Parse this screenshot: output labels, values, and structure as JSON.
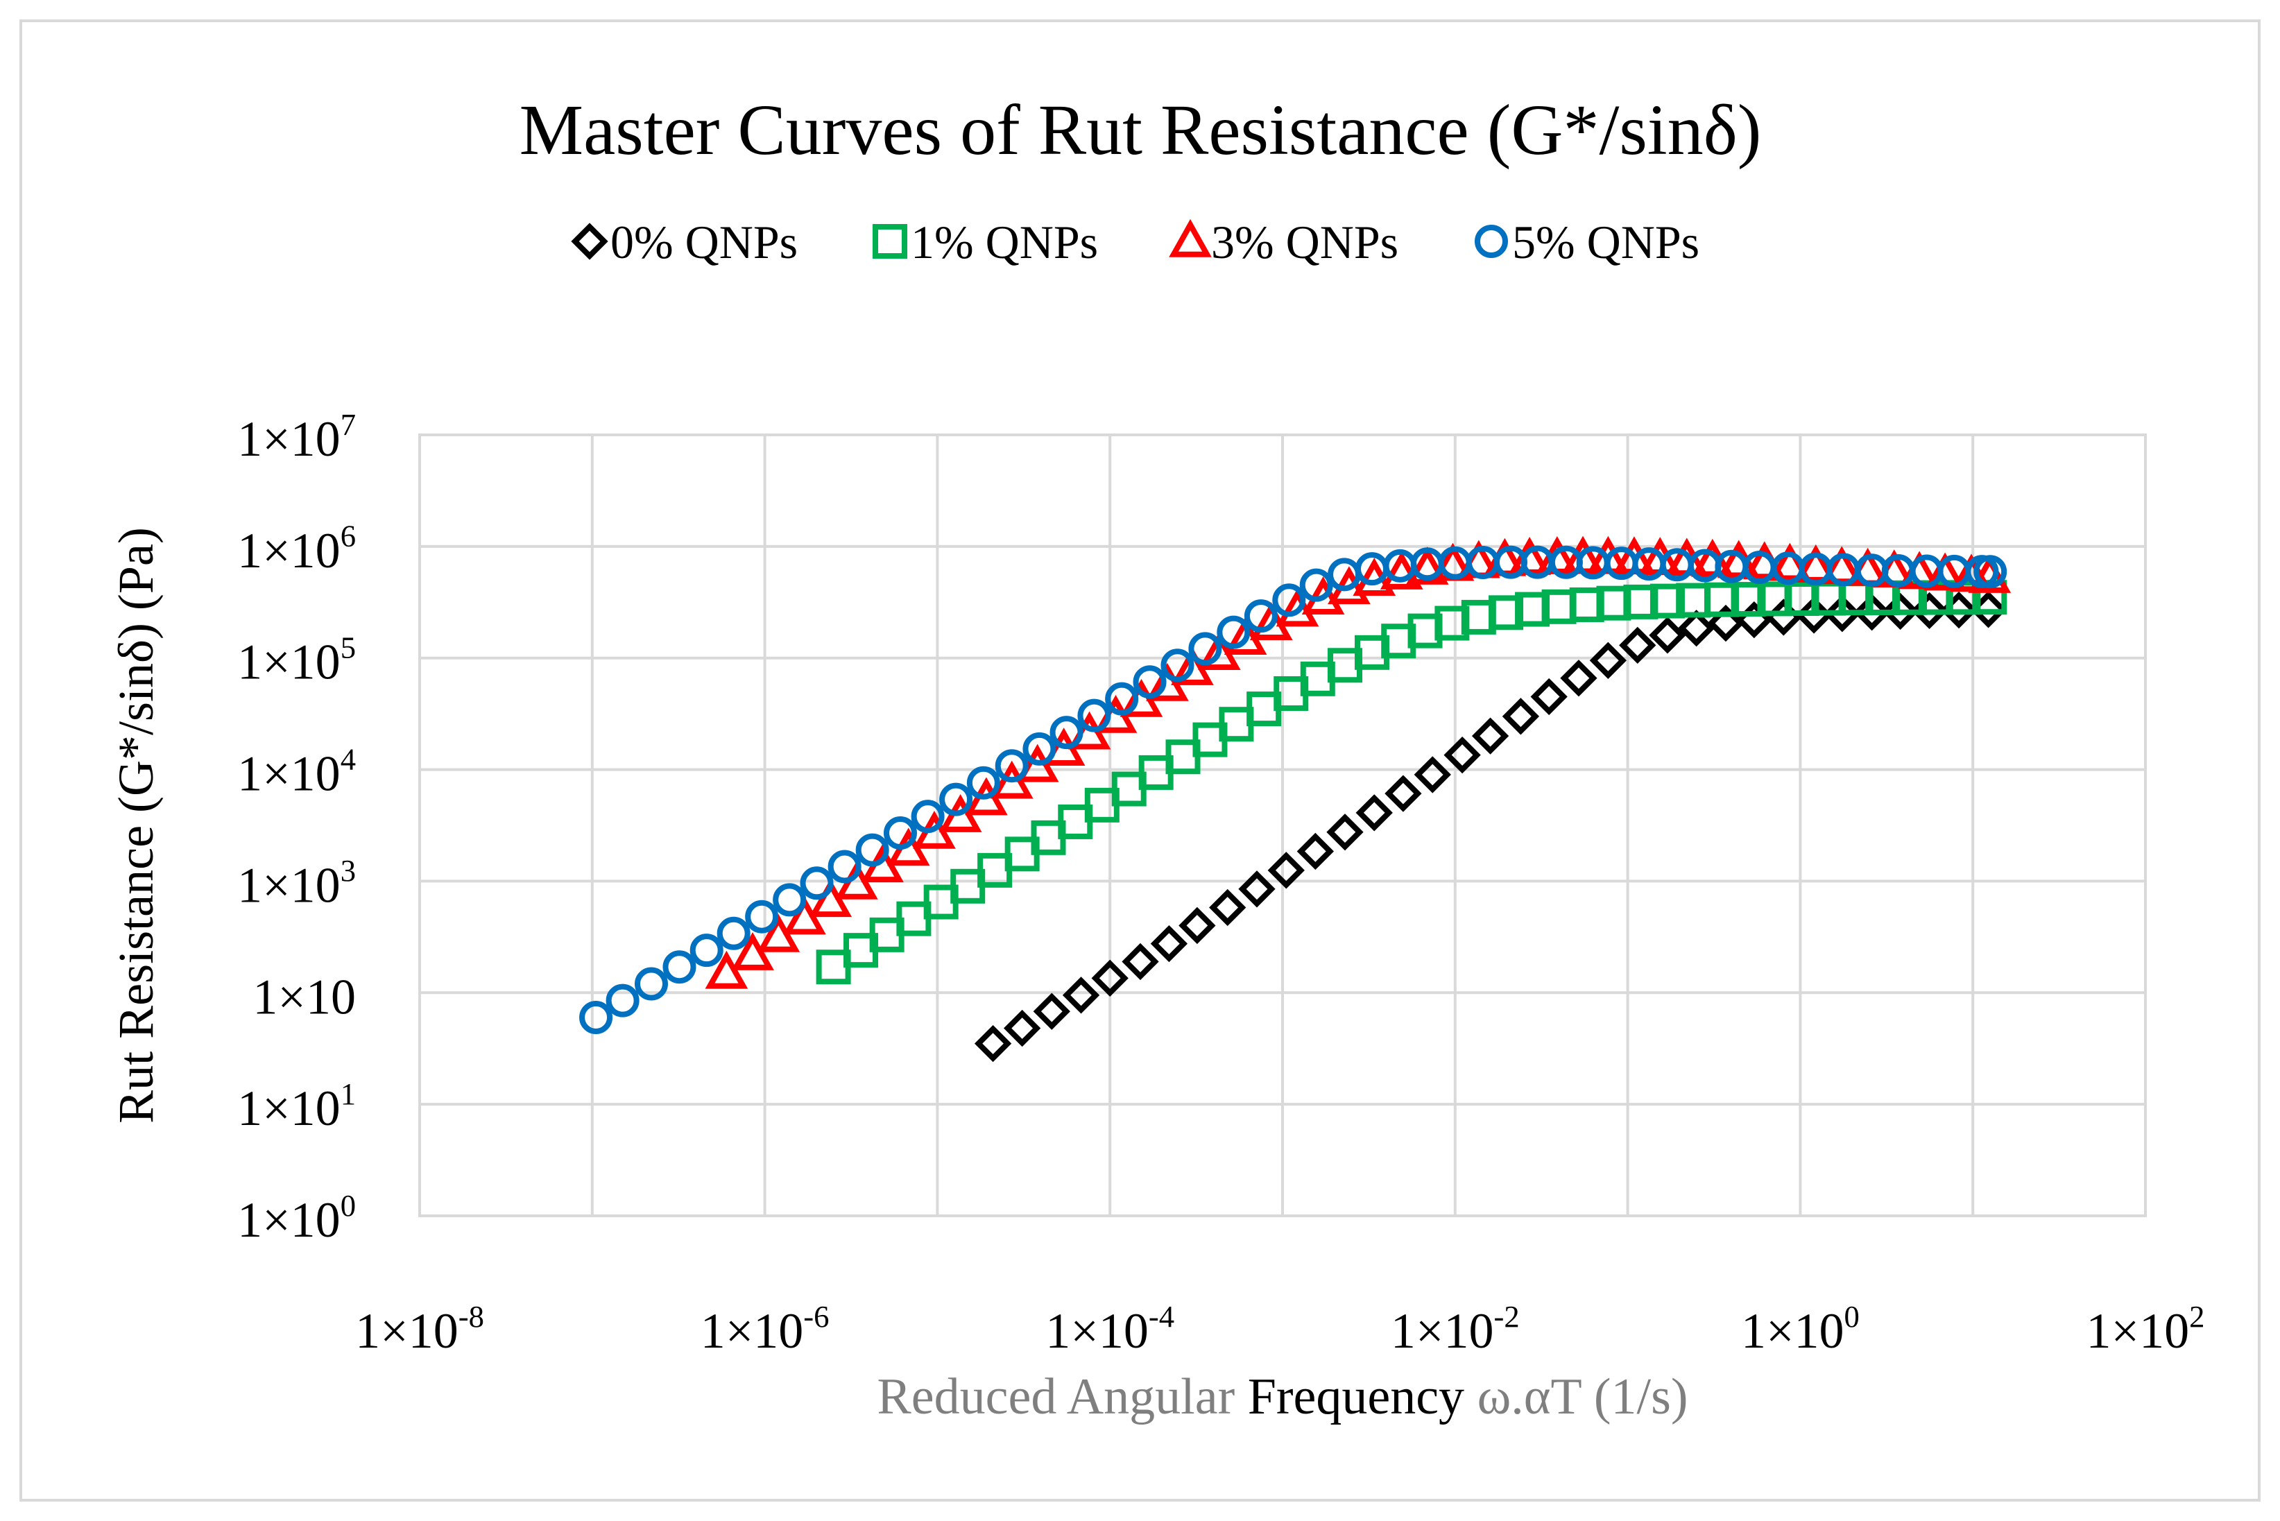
{
  "chart_data": {
    "type": "scatter",
    "title": "Master Curves of Rut Resistance (G*/sinδ)",
    "xlabel": {
      "part1": "Reduced Angular ",
      "part2": "Frequency",
      "part3": " ω.αT (1/s)"
    },
    "ylabel": "Rut Resistance (G*/sinδ)  (Pa)",
    "x_scale": "log",
    "y_scale": "log",
    "xlim": [
      1e-08,
      100.0
    ],
    "ylim": [
      1,
      10000000.0
    ],
    "grid": true,
    "legend_position": "top-center",
    "x_ticks": [
      {
        "base": "1×10",
        "exp": "-8"
      },
      {
        "base": "1×10",
        "exp": "-6"
      },
      {
        "base": "1×10",
        "exp": "-4"
      },
      {
        "base": "1×10",
        "exp": "-2"
      },
      {
        "base": "1×10",
        "exp": "0"
      },
      {
        "base": "1×10",
        "exp": "2"
      }
    ],
    "y_ticks": [
      {
        "base": "1×10",
        "exp": "0"
      },
      {
        "base": "1×10",
        "exp": "1"
      },
      {
        "base": "1×10",
        "exp": ""
      },
      {
        "base": "1×10",
        "exp": "3"
      },
      {
        "base": "1×10",
        "exp": "4"
      },
      {
        "base": "1×10",
        "exp": "5"
      },
      {
        "base": "1×10",
        "exp": "6"
      },
      {
        "base": "1×10",
        "exp": "7"
      }
    ],
    "series": [
      {
        "name": "0% QNPs",
        "marker": "diamond",
        "color": "#000000",
        "x": [
          2.1e-05,
          3.1e-05,
          4.6e-05,
          6.8e-05,
          0.0001,
          0.00015,
          0.00022,
          0.00032,
          0.00048,
          0.00071,
          0.00105,
          0.00155,
          0.0023,
          0.0034,
          0.005,
          0.0074,
          0.011,
          0.016,
          0.024,
          0.035,
          0.052,
          0.077,
          0.114,
          0.17,
          0.25,
          0.37,
          0.54,
          0.8,
          1.2,
          1.75,
          2.6,
          3.8,
          5.6,
          8.3,
          12.3
        ],
        "y": [
          35,
          48,
          68,
          95,
          135,
          190,
          275,
          400,
          580,
          850,
          1250,
          1850,
          2750,
          4100,
          6100,
          9000,
          13500,
          20000,
          30000,
          45000,
          66000,
          95000,
          130000,
          160000,
          185000,
          205000,
          220000,
          232000,
          242000,
          250000,
          257000,
          262000,
          266000,
          269000,
          272000
        ]
      },
      {
        "name": "1% QNPs",
        "marker": "square",
        "color": "#00b050",
        "x": [
          2.5e-06,
          3.6e-06,
          5.1e-06,
          7.3e-06,
          1.05e-05,
          1.5e-05,
          2.15e-05,
          3.1e-05,
          4.4e-05,
          6.3e-05,
          9e-05,
          0.000129,
          0.000185,
          0.000265,
          0.00038,
          0.00054,
          0.00078,
          0.00112,
          0.0016,
          0.0023,
          0.0033,
          0.0047,
          0.0067,
          0.0096,
          0.0137,
          0.0197,
          0.028,
          0.04,
          0.058,
          0.083,
          0.119,
          0.17,
          0.24,
          0.35,
          0.5,
          0.71,
          1.02,
          1.46,
          2.1,
          3.0,
          4.3,
          6.1,
          8.8,
          12.5
        ],
        "y": [
          170,
          240,
          330,
          460,
          650,
          900,
          1250,
          1750,
          2450,
          3400,
          4800,
          6700,
          9400,
          13000,
          18500,
          25500,
          35000,
          48000,
          65000,
          86000,
          112000,
          142000,
          175000,
          205000,
          232000,
          255000,
          273000,
          288000,
          300000,
          310000,
          318000,
          324000,
          329000,
          333000,
          336000,
          339000,
          341000,
          343000,
          345000,
          346000,
          347000,
          348000,
          349000,
          350000
        ]
      },
      {
        "name": "3% QNPs",
        "marker": "triangle",
        "color": "#ff0000",
        "x": [
          6e-07,
          8.5e-07,
          1.2e-06,
          1.7e-06,
          2.4e-06,
          3.4e-06,
          4.8e-06,
          6.8e-06,
          9.6e-06,
          1.36e-05,
          1.92e-05,
          2.7e-05,
          3.8e-05,
          5.4e-05,
          7.6e-05,
          0.000108,
          0.000152,
          0.000215,
          0.0003,
          0.00043,
          0.00061,
          0.00086,
          0.00122,
          0.00172,
          0.00243,
          0.0034,
          0.0049,
          0.0069,
          0.0097,
          0.0137,
          0.0194,
          0.027,
          0.039,
          0.055,
          0.077,
          0.109,
          0.154,
          0.22,
          0.31,
          0.44,
          0.62,
          0.87,
          1.23,
          1.74,
          2.46,
          3.5,
          4.9,
          6.9,
          9.8,
          12.5
        ],
        "y": [
          150,
          220,
          320,
          460,
          660,
          950,
          1350,
          1900,
          2700,
          3800,
          5400,
          7600,
          10700,
          15000,
          21000,
          29500,
          41000,
          57000,
          79000,
          108000,
          148000,
          200000,
          265000,
          340000,
          420000,
          500000,
          570000,
          630000,
          680000,
          720000,
          750000,
          770000,
          780000,
          785000,
          784000,
          778000,
          768000,
          755000,
          740000,
          722000,
          702000,
          680000,
          658000,
          636000,
          614000,
          594000,
          575000,
          558000,
          543000,
          530000
        ]
      },
      {
        "name": "5% QNPs",
        "marker": "circle",
        "color": "#0070c0",
        "x": [
          1.05e-07,
          1.5e-07,
          2.2e-07,
          3.2e-07,
          4.6e-07,
          6.6e-07,
          9.6e-07,
          1.39e-06,
          2e-06,
          2.9e-06,
          4.2e-06,
          6.1e-06,
          8.8e-06,
          1.28e-05,
          1.85e-05,
          2.7e-05,
          3.9e-05,
          5.6e-05,
          8.1e-05,
          0.000117,
          0.00017,
          0.000246,
          0.000356,
          0.00052,
          0.00075,
          0.00109,
          0.00157,
          0.00228,
          0.0033,
          0.0048,
          0.0069,
          0.01,
          0.0145,
          0.021,
          0.03,
          0.044,
          0.063,
          0.092,
          0.133,
          0.193,
          0.28,
          0.4,
          0.58,
          0.85,
          1.23,
          1.78,
          2.6,
          3.7,
          5.4,
          7.8,
          11.3,
          12.6
        ],
        "y": [
          60,
          85,
          120,
          170,
          240,
          340,
          480,
          680,
          960,
          1350,
          1900,
          2700,
          3800,
          5400,
          7600,
          10800,
          15300,
          21500,
          30500,
          43000,
          61000,
          86000,
          121000,
          170000,
          238000,
          330000,
          450000,
          560000,
          630000,
          670000,
          695000,
          710000,
          718000,
          722000,
          722000,
          720000,
          714000,
          706000,
          696000,
          685000,
          673000,
          661000,
          649000,
          638000,
          628000,
          619000,
          611000,
          605000,
          600000,
          597000,
          595000,
          594000
        ]
      }
    ]
  }
}
